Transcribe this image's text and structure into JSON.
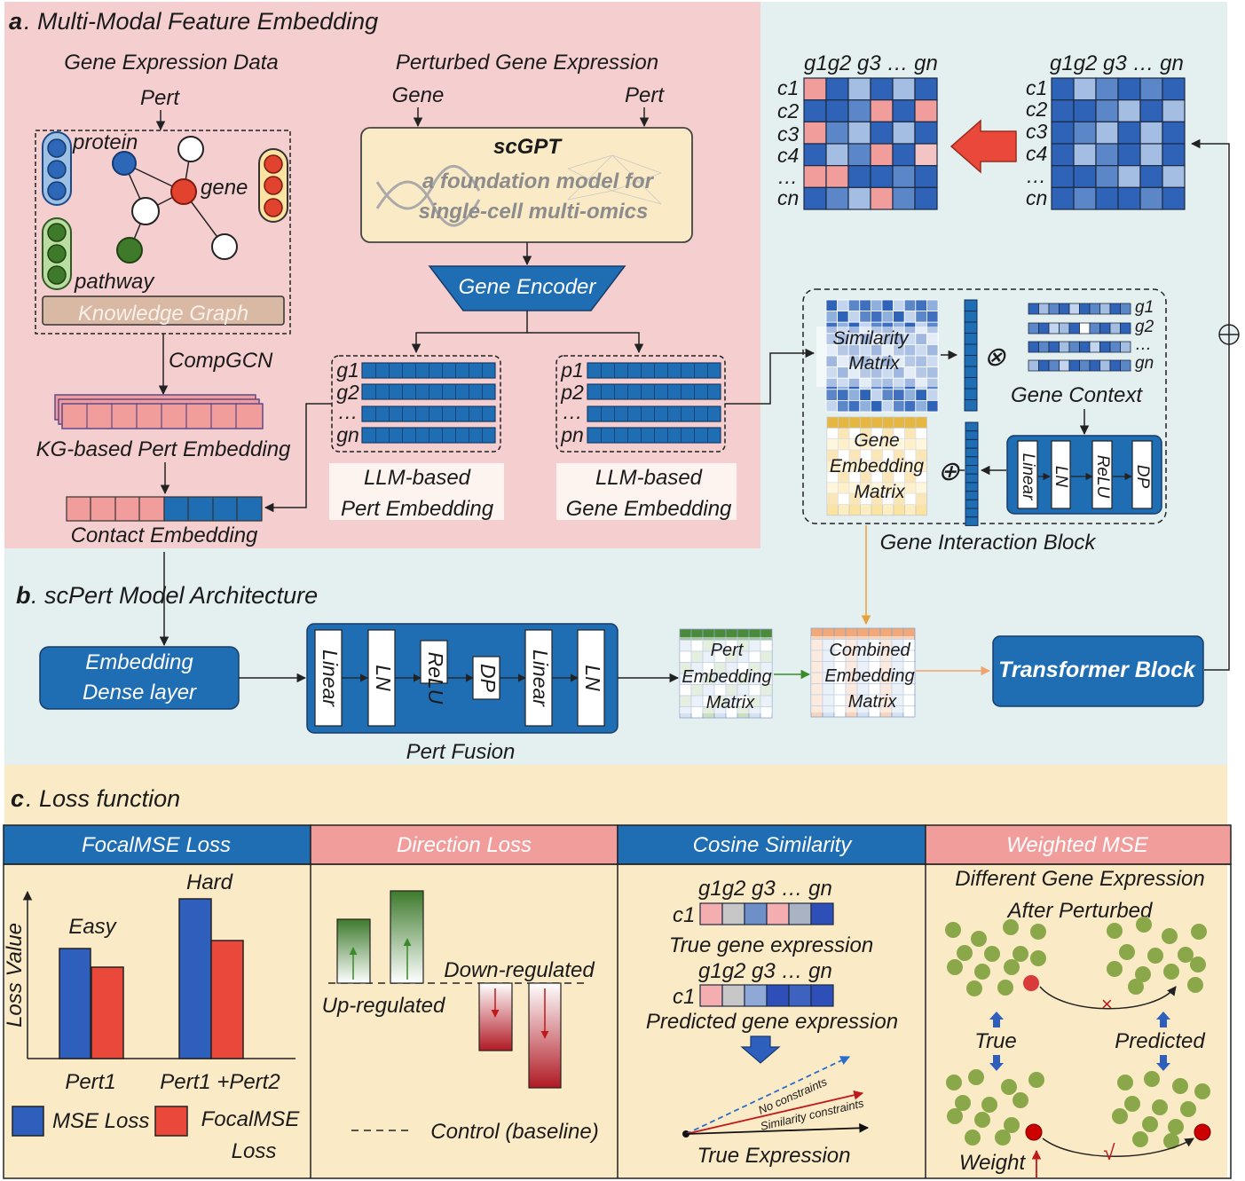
{
  "colors": {
    "panel_a_bg": "#f5cfcf",
    "panel_b_bg": "#e4eff0",
    "panel_c_bg": "#fbeac6",
    "blue_dark": "#1f6db3",
    "blue_mid": "#3a7cc4",
    "blue_light": "#9cb9de",
    "pink": "#f19d9c",
    "red": "#e9483a",
    "green": "#4a7c3a",
    "header_pink": "#f19d9c",
    "header_blue": "#1f6db3"
  },
  "panel_a": {
    "label_letter": "a",
    "label_text": ". Multi-Modal Feature Embedding",
    "gene_expression_data": "Gene Expression Data",
    "pert_top": "Pert",
    "node_protein": "protein",
    "node_gene": "gene",
    "node_pathway": "pathway",
    "knowledge_graph": "Knowledge Graph",
    "compgcn": "CompGCN",
    "kg_pert_embedding": "KG-based Pert Embedding",
    "contact_embedding": "Contact Embedding",
    "perturbed_gene_expression": "Perturbed Gene Expression",
    "gene_in": "Gene",
    "pert_in": "Pert",
    "scgpt_title": "scGPT",
    "scgpt_sub1": "a foundation model for",
    "scgpt_sub2": "single-cell multi-omics",
    "gene_encoder": "Gene Encoder",
    "g_rows": [
      "g1",
      "g2",
      "…",
      "gn"
    ],
    "p_rows": [
      "p1",
      "p2",
      "…",
      "pn"
    ],
    "llm_pert_1": "LLM-based",
    "llm_pert_2": "Pert Embedding",
    "llm_gene_1": "LLM-based",
    "llm_gene_2": "Gene Embedding"
  },
  "top_right": {
    "cols": "g1g2 g3 … gn",
    "rows": [
      "c1",
      "c2",
      "c3",
      "c4",
      "…",
      "cn"
    ]
  },
  "gene_interaction": {
    "similarity_1": "Similarity",
    "similarity_2": "Matrix",
    "otimes": "⊗",
    "oplus": "⊕",
    "oplus_right": "⊕",
    "context_rows": [
      "g1",
      "g2",
      "…",
      "gn"
    ],
    "gene_context": "Gene Context",
    "gem_1": "Gene",
    "gem_2": "Embedding",
    "gem_3": "Matrix",
    "mini_blocks": [
      "Linear",
      "LN",
      "ReLU",
      "DP"
    ],
    "block_title": "Gene Interaction Block"
  },
  "panel_b": {
    "label_letter": "b",
    "label_text": ". scPert Model Architecture",
    "dense_1": "Embedding",
    "dense_2": "Dense layer",
    "fusion_blocks": [
      "Linear",
      "LN",
      "ReLU",
      "DP",
      "Linear",
      "LN"
    ],
    "pert_fusion": "Pert Fusion",
    "pem_1": "Pert",
    "pem_2": "Embedding",
    "pem_3": "Matrix",
    "cem_1": "Combined",
    "cem_2": "Embedding",
    "cem_3": "Matrix",
    "transformer": "Transformer Block"
  },
  "panel_c": {
    "label_letter": "c",
    "label_text": ". Loss function",
    "headers": [
      "FocalMSE Loss",
      "Direction Loss",
      "Cosine Similarity",
      "Weighted MSE"
    ],
    "focal": {
      "ylabel": "Loss Value",
      "easy": "Easy",
      "hard": "Hard",
      "x1": "Pert1",
      "x2": "Pert1 +Pert2",
      "legend_mse": "MSE Loss",
      "legend_focal_1": "FocalMSE",
      "legend_focal_2": "Loss"
    },
    "direction": {
      "down": "Down-regulated",
      "up": "Up-regulated",
      "control": "Control (baseline)"
    },
    "cosine": {
      "cols": "g1g2 g3 … gn",
      "row": "c1",
      "true_label": "True gene expression",
      "pred_label": "Predicted gene expression",
      "no_constraints": "No constraints",
      "similarity_constraints": "Similarity constraints",
      "true_expression": "True Expression"
    },
    "weighted": {
      "title_1": "Different Gene Expression",
      "title_2": "After Perturbed",
      "true": "True",
      "predicted": "Predicted",
      "cross": "×",
      "check": "√",
      "weight": "Weight"
    }
  }
}
